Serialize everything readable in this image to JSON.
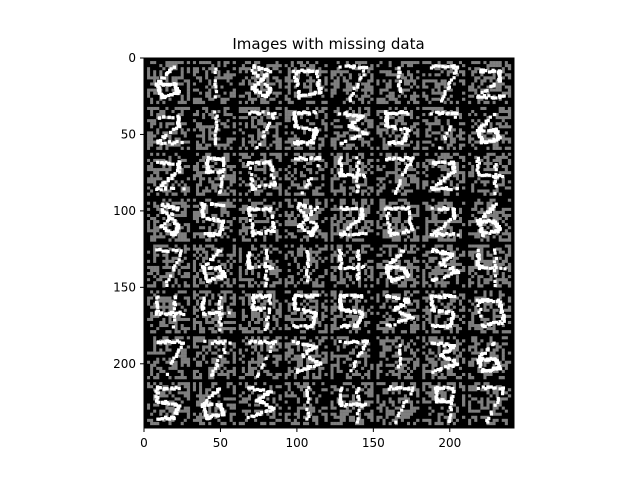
{
  "chart_data": {
    "type": "heatmap",
    "title": "Images with missing data",
    "xlabel": "",
    "ylabel": "",
    "xlim": [
      0,
      242
    ],
    "ylim": [
      242,
      0
    ],
    "grid": false,
    "image": {
      "rows": 8,
      "cols": 8,
      "tile_size_px": 28,
      "separator_px": 2,
      "missing_value_color": "#7f7f7f",
      "background_color": "#000000",
      "stroke_color": "#ffffff",
      "digits": [
        [
          6,
          1,
          8,
          0,
          7,
          1,
          7,
          2
        ],
        [
          2,
          1,
          7,
          5,
          3,
          5,
          7,
          6
        ],
        [
          2,
          9,
          0,
          7,
          4,
          7,
          2,
          4
        ],
        [
          8,
          5,
          0,
          8,
          2,
          0,
          2,
          6
        ],
        [
          7,
          6,
          4,
          1,
          4,
          6,
          3,
          4
        ],
        [
          4,
          4,
          9,
          5,
          5,
          3,
          5,
          0
        ],
        [
          7,
          7,
          7,
          3,
          7,
          1,
          3,
          6
        ],
        [
          5,
          6,
          3,
          1,
          4,
          7,
          9,
          7
        ]
      ]
    },
    "xticks": [
      0,
      50,
      100,
      150,
      200
    ],
    "yticks": [
      0,
      50,
      100,
      150,
      200
    ]
  }
}
